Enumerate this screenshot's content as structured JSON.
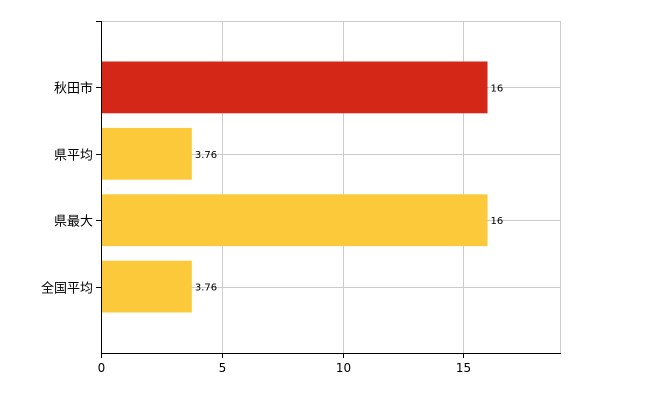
{
  "chart_data": {
    "type": "bar",
    "orientation": "horizontal",
    "categories": [
      "秋田市",
      "県平均",
      "県最大",
      "全国平均"
    ],
    "values": [
      16,
      3.76,
      16,
      3.76
    ],
    "value_labels": [
      "16",
      "3.76",
      "16",
      "3.76"
    ],
    "bar_colors": [
      "#d42718",
      "#fcc93a",
      "#fcc93a",
      "#fcc93a"
    ],
    "xlim": [
      0,
      19
    ],
    "xticks": [
      0,
      5,
      10,
      15
    ],
    "xtick_labels": [
      "0",
      "5",
      "10",
      "15"
    ],
    "grid": true,
    "gridline_color": "#cccccc",
    "axis_color": "#000000",
    "title": "",
    "xlabel": "",
    "ylabel": ""
  }
}
